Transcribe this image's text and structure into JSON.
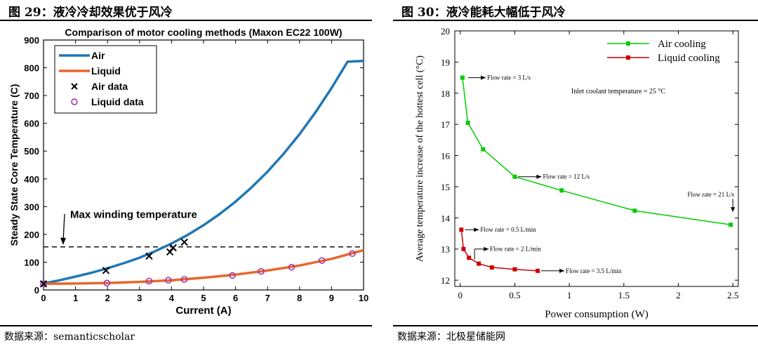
{
  "left": {
    "fig_label": "图 29：液冷冷却效果优于风冷",
    "source": "数据来源：semanticscholar"
  },
  "right": {
    "fig_label": "图 30：液冷能耗大幅低于风冷",
    "source": "数据来源：北极星储能网"
  },
  "chart_data": [
    {
      "type": "line",
      "title": "Comparison of motor cooling methods (Maxon EC22 100W)",
      "xlabel": "Current (A)",
      "ylabel": "Steady State Core Temperature (C)",
      "xlim": [
        0,
        10
      ],
      "ylim": [
        0,
        900
      ],
      "xticks": [
        0,
        1,
        2,
        3,
        4,
        5,
        6,
        7,
        8,
        9,
        10
      ],
      "yticks": [
        0,
        100,
        200,
        300,
        400,
        500,
        600,
        700,
        800,
        900
      ],
      "grid": false,
      "legend": [
        "Air",
        "Liquid",
        "Air data",
        "Liquid data"
      ],
      "colors": {
        "air": "#1f77b4",
        "liquid": "#e8662a",
        "air_data": "#000000",
        "liquid_data": "#9b30b0"
      },
      "annotation": {
        "text": "Max winding temperature",
        "y": 155
      },
      "series": [
        {
          "name": "Air",
          "x": [
            0,
            0.5,
            1,
            1.5,
            2,
            2.5,
            3,
            3.5,
            4,
            4.5,
            5,
            5.5,
            6,
            6.5,
            7,
            7.5,
            8,
            8.5,
            9,
            9.5,
            10
          ],
          "values": [
            23,
            35,
            48,
            62,
            78,
            96,
            116,
            140,
            167,
            198,
            233,
            273,
            318,
            369,
            426,
            490,
            561,
            640,
            727,
            822,
            825
          ]
        },
        {
          "name": "Liquid",
          "x": [
            0,
            1,
            2,
            3,
            4,
            5,
            6,
            7,
            8,
            9,
            10
          ],
          "values": [
            22,
            23,
            25,
            29,
            35,
            44,
            55,
            70,
            88,
            112,
            143
          ]
        },
        {
          "name": "Air data",
          "x": [
            0,
            1.95,
            3.3,
            3.95,
            4.05,
            4.4
          ],
          "values": [
            22,
            70,
            122,
            137,
            152,
            172
          ]
        },
        {
          "name": "Liquid data",
          "x": [
            0,
            1.98,
            3.3,
            3.9,
            4.4,
            5.9,
            6.8,
            7.75,
            8.7,
            9.65
          ],
          "values": [
            22,
            25,
            32,
            35,
            38,
            52,
            67,
            82,
            106,
            131
          ]
        }
      ]
    },
    {
      "type": "line",
      "title": "",
      "xlabel": "Power consumption (W)",
      "ylabel": "Average temperature increase of the hottest cell (°C)",
      "xlim": [
        -0.05,
        2.55
      ],
      "ylim": [
        11.8,
        20
      ],
      "xticks": [
        0,
        0.5,
        1,
        1.5,
        2,
        2.5
      ],
      "xtick_labels": [
        "0",
        "0.5",
        "1",
        "1.5",
        "2",
        "2.5"
      ],
      "yticks": [
        12,
        13,
        14,
        15,
        16,
        17,
        18,
        19,
        20
      ],
      "grid": false,
      "legend": [
        "Air cooling",
        "Liquid cooling"
      ],
      "colors": {
        "air": "#00cc00",
        "liquid": "#cc0000"
      },
      "annotations": [
        "Flow rate = 3 L/s",
        "Flow rate = 12 L/s",
        "Flow rate = 21 L/s",
        "Flow rate = 0.5 L/min",
        "Flow rate = 2 L/min",
        "Flow rate = 3.5 L/min",
        "Inlet coolant temperature = 25 °C"
      ],
      "series": [
        {
          "name": "Air cooling",
          "x": [
            0.02,
            0.07,
            0.21,
            0.5,
            0.93,
            1.6,
            2.48
          ],
          "values": [
            18.5,
            17.05,
            16.2,
            15.32,
            14.88,
            14.23,
            13.78
          ]
        },
        {
          "name": "Liquid cooling",
          "x": [
            0.01,
            0.03,
            0.08,
            0.17,
            0.29,
            0.5,
            0.71
          ],
          "values": [
            13.62,
            13.0,
            12.72,
            12.53,
            12.41,
            12.35,
            12.3
          ]
        }
      ]
    }
  ]
}
